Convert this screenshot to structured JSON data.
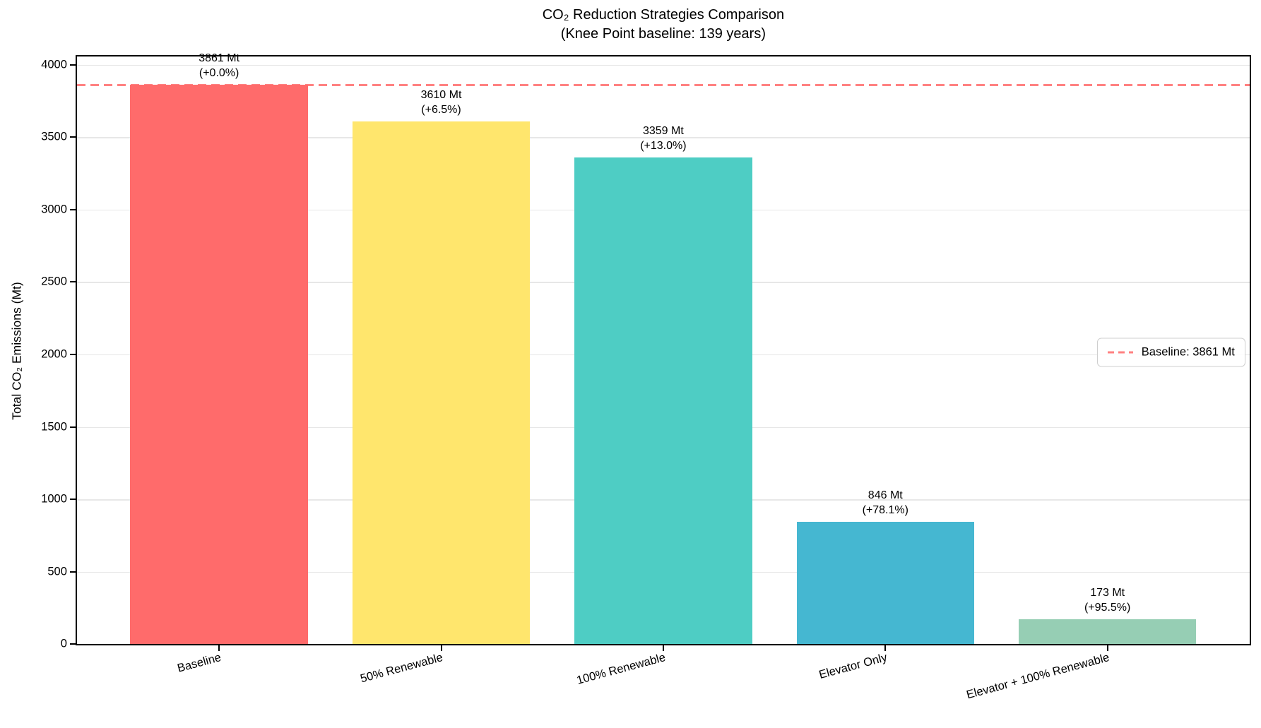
{
  "chart_data": {
    "type": "bar",
    "title": "CO₂ Reduction Strategies Comparison",
    "subtitle": "(Knee Point baseline: 139 years)",
    "ylabel": "Total CO₂ Emissions (Mt)",
    "xlabel": "",
    "categories": [
      "Baseline",
      "50% Renewable",
      "100% Renewable",
      "Elevator Only",
      "Elevator + 100% Renewable"
    ],
    "values": [
      3861,
      3610,
      3359,
      846,
      173
    ],
    "value_labels": [
      "3861 Mt",
      "3610 Mt",
      "3359 Mt",
      "846 Mt",
      "173 Mt"
    ],
    "pct_labels": [
      "(+0.0%)",
      "(+6.5%)",
      "(+13.0%)",
      "(+78.1%)",
      "(+95.5%)"
    ],
    "bar_colors": [
      "#ff6b6b",
      "#ffe66d",
      "#4ecdc4",
      "#45b7d1",
      "#96ceb4"
    ],
    "ylim": [
      0,
      4058
    ],
    "xlim": [
      -0.64,
      4.64
    ],
    "bar_width": 0.8,
    "yticks": [
      0,
      500,
      1000,
      1500,
      2000,
      2500,
      3000,
      3500,
      4000
    ],
    "grid": true,
    "xtick_rotation_deg": 15,
    "baseline": {
      "value": 3861,
      "legend_label": "Baseline: 3861 Mt",
      "color": "#ff6b6b",
      "style": "dashed"
    },
    "legend_position": "center right"
  }
}
